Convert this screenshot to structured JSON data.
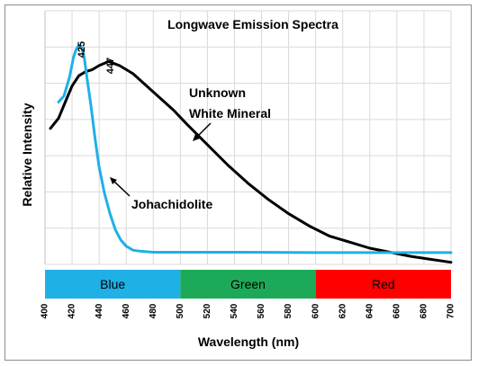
{
  "chart_data": {
    "type": "line",
    "title": "Longwave Emission Spectra",
    "xlabel": "Wavelength (nm)",
    "ylabel": "Relative Intensity",
    "xlim": [
      400,
      700
    ],
    "ylim": [
      0,
      1.25
    ],
    "x_ticks": [
      "400",
      "420",
      "440",
      "460",
      "480",
      "500",
      "520",
      "540",
      "560",
      "580",
      "600",
      "620",
      "640",
      "660",
      "680",
      "700"
    ],
    "grid": true,
    "series": [
      {
        "name": "Unknown White Mineral",
        "color": "#000000",
        "x": [
          404,
          410,
          415,
          420,
          425,
          430,
          435,
          440,
          447,
          455,
          465,
          475,
          485,
          495,
          505,
          520,
          535,
          550,
          565,
          580,
          595,
          610,
          625,
          640,
          655,
          670,
          685,
          700
        ],
        "y": [
          0.67,
          0.72,
          0.8,
          0.88,
          0.93,
          0.95,
          0.96,
          0.98,
          1.0,
          0.98,
          0.94,
          0.88,
          0.82,
          0.76,
          0.69,
          0.59,
          0.49,
          0.4,
          0.32,
          0.25,
          0.19,
          0.14,
          0.11,
          0.08,
          0.06,
          0.04,
          0.025,
          0.01
        ]
      },
      {
        "name": "Johachidolite",
        "color": "#1fb0e6",
        "x": [
          410,
          414,
          418,
          421,
          423,
          425,
          427,
          429,
          431,
          434,
          437,
          440,
          444,
          448,
          452,
          456,
          460,
          465,
          470,
          480,
          500,
          550,
          600,
          650,
          700
        ],
        "y": [
          0.8,
          0.83,
          0.92,
          1.02,
          1.06,
          1.08,
          1.07,
          1.02,
          0.92,
          0.78,
          0.62,
          0.48,
          0.35,
          0.25,
          0.17,
          0.12,
          0.09,
          0.07,
          0.065,
          0.06,
          0.06,
          0.06,
          0.058,
          0.058,
          0.058
        ]
      }
    ],
    "bands": [
      {
        "label": "Blue",
        "from": 400,
        "to": 500,
        "color": "#1fb0e6"
      },
      {
        "label": "Green",
        "from": 500,
        "to": 600,
        "color": "#1daa58"
      },
      {
        "label": "Red",
        "from": 600,
        "to": 700,
        "color": "#ff0000"
      }
    ],
    "annotations": [
      {
        "id": "peak-425",
        "text": "425",
        "x": 425,
        "y": 1.08
      },
      {
        "id": "peak-447",
        "text": "447",
        "x": 447,
        "y": 1.0
      },
      {
        "id": "unknown-line1",
        "text": "Unknown"
      },
      {
        "id": "unknown-line2",
        "text": "White Mineral"
      },
      {
        "id": "johachidolite",
        "text": "Johachidolite"
      }
    ]
  }
}
